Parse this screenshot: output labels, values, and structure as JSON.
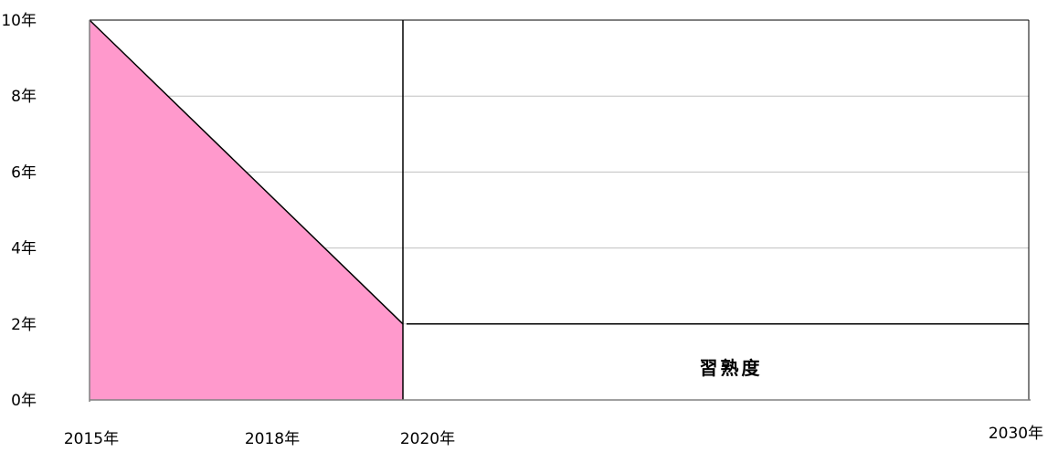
{
  "chart_data": {
    "type": "area",
    "title": "",
    "xlabel": "",
    "ylabel": "",
    "y_ticks": [
      "0年",
      "2年",
      "4年",
      "6年",
      "8年",
      "10年"
    ],
    "x_ticks": [
      "2015年",
      "2018年",
      "2020年",
      "2030年"
    ],
    "ylim": [
      0,
      10
    ],
    "grid": true,
    "series": [
      {
        "x": [
          "2015年",
          "2020年"
        ],
        "values": [
          10,
          2
        ],
        "fill": "#ff99cc",
        "line": "#000000"
      },
      {
        "x": [
          "2020年",
          "2030年"
        ],
        "values": [
          2,
          2
        ],
        "line": "#000000"
      }
    ],
    "annotations": [
      {
        "text": "習熟度"
      }
    ],
    "colors": {
      "fill": "#ff99cc",
      "gridline": "#c0c0c0",
      "axis": "#808080",
      "line": "#000000"
    }
  }
}
